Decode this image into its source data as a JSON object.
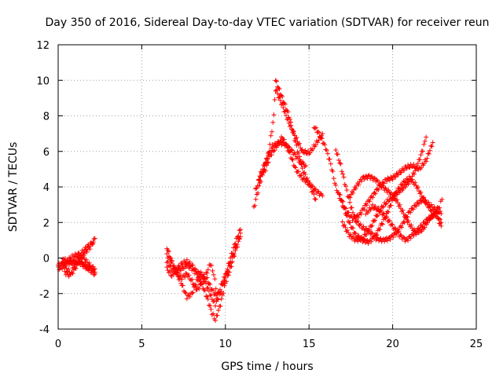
{
  "chart_data": {
    "type": "scatter",
    "title": "Day 350 of 2016, Sidereal Day-to-day VTEC variation (SDTVAR) for receiver reun",
    "xlabel": "GPS time / hours",
    "ylabel": "SDTVAR / TECUs",
    "xlim": [
      0,
      25
    ],
    "ylim": [
      -4,
      12
    ],
    "xticks": [
      "0",
      "5",
      "10",
      "15",
      "20",
      "25"
    ],
    "yticks": [
      "-4",
      "-2",
      "0",
      "2",
      "4",
      "6",
      "8",
      "10",
      "12"
    ],
    "grid": true,
    "marker": "+",
    "series": [
      {
        "name": "SDTVAR",
        "color": "#ff0000",
        "tracks": [
          [
            [
              0.0,
              -0.4
            ],
            [
              0.3,
              -0.3
            ],
            [
              0.6,
              -0.2
            ],
            [
              0.9,
              -0.3
            ],
            [
              1.2,
              -0.2
            ],
            [
              1.5,
              -0.4
            ],
            [
              1.8,
              -0.5
            ],
            [
              2.2,
              -0.6
            ]
          ],
          [
            [
              0.0,
              -0.6
            ],
            [
              0.3,
              -0.5
            ],
            [
              0.6,
              -0.1
            ],
            [
              0.9,
              0.1
            ],
            [
              1.2,
              0.2
            ],
            [
              1.5,
              0.0
            ],
            [
              1.8,
              -0.3
            ],
            [
              2.2,
              -0.8
            ]
          ],
          [
            [
              0.2,
              -0.2
            ],
            [
              0.5,
              -0.6
            ],
            [
              0.8,
              -0.9
            ],
            [
              1.0,
              -0.6
            ],
            [
              1.3,
              -0.1
            ],
            [
              1.6,
              0.3
            ],
            [
              1.9,
              0.6
            ],
            [
              2.2,
              1.1
            ]
          ],
          [
            [
              0.3,
              0.0
            ],
            [
              0.6,
              -0.3
            ],
            [
              0.9,
              -0.2
            ],
            [
              1.2,
              0.1
            ],
            [
              1.5,
              0.4
            ],
            [
              1.8,
              0.7
            ],
            [
              2.1,
              0.9
            ]
          ],
          [
            [
              0.4,
              -0.8
            ],
            [
              0.7,
              -1.0
            ],
            [
              1.0,
              -0.4
            ],
            [
              1.3,
              -0.2
            ],
            [
              1.6,
              -0.5
            ],
            [
              1.9,
              -0.7
            ],
            [
              2.2,
              -0.9
            ]
          ],
          [
            [
              6.5,
              0.6
            ],
            [
              6.8,
              -0.2
            ],
            [
              7.1,
              -0.9
            ],
            [
              7.4,
              -1.5
            ],
            [
              7.7,
              -2.2
            ],
            [
              8.0,
              -2.0
            ],
            [
              8.3,
              -1.3
            ],
            [
              8.6,
              -1.0
            ],
            [
              8.9,
              -1.6
            ],
            [
              9.2,
              -2.3
            ],
            [
              9.4,
              -2.6
            ],
            [
              9.7,
              -2.0
            ],
            [
              10.0,
              -1.0
            ],
            [
              10.3,
              0.0
            ],
            [
              10.6,
              0.9
            ],
            [
              10.9,
              1.6
            ]
          ],
          [
            [
              6.5,
              -0.2
            ],
            [
              6.8,
              -0.6
            ],
            [
              7.1,
              -0.7
            ],
            [
              7.4,
              -0.6
            ],
            [
              7.7,
              -0.4
            ],
            [
              8.0,
              -0.6
            ],
            [
              8.3,
              -0.9
            ],
            [
              8.6,
              -1.5
            ],
            [
              8.9,
              -2.2
            ],
            [
              9.2,
              -3.1
            ],
            [
              9.4,
              -3.5
            ],
            [
              9.7,
              -2.6
            ],
            [
              10.0,
              -1.4
            ],
            [
              10.3,
              -0.6
            ],
            [
              10.6,
              0.4
            ],
            [
              10.9,
              1.2
            ]
          ],
          [
            [
              6.5,
              -0.6
            ],
            [
              6.8,
              -1.0
            ],
            [
              7.1,
              -0.6
            ],
            [
              7.4,
              -0.3
            ],
            [
              7.7,
              -0.2
            ],
            [
              8.0,
              -0.4
            ],
            [
              8.3,
              -0.8
            ],
            [
              8.6,
              -0.9
            ],
            [
              8.9,
              -1.2
            ],
            [
              9.2,
              -1.8
            ],
            [
              9.5,
              -2.2
            ],
            [
              9.8,
              -1.4
            ],
            [
              10.1,
              -0.8
            ],
            [
              10.4,
              0.0
            ],
            [
              10.7,
              0.8
            ],
            [
              10.9,
              1.4
            ]
          ],
          [
            [
              6.5,
              0.2
            ],
            [
              6.8,
              -0.3
            ],
            [
              7.1,
              -0.9
            ],
            [
              7.4,
              -1.1
            ],
            [
              7.7,
              -0.9
            ],
            [
              8.0,
              -1.3
            ],
            [
              8.3,
              -1.8
            ],
            [
              8.6,
              -1.4
            ],
            [
              8.9,
              -0.8
            ],
            [
              9.1,
              -0.3
            ],
            [
              9.3,
              -0.9
            ],
            [
              9.5,
              -2.0
            ]
          ],
          [
            [
              11.7,
              2.8
            ],
            [
              12.0,
              4.0
            ],
            [
              12.3,
              5.0
            ],
            [
              12.6,
              6.0
            ],
            [
              12.9,
              8.0
            ],
            [
              13.0,
              10.0
            ],
            [
              13.4,
              9.0
            ],
            [
              13.8,
              8.0
            ],
            [
              14.2,
              6.5
            ],
            [
              14.6,
              5.0
            ],
            [
              15.0,
              4.2
            ],
            [
              15.4,
              3.3
            ]
          ],
          [
            [
              11.8,
              3.8
            ],
            [
              12.1,
              4.6
            ],
            [
              12.4,
              5.0
            ],
            [
              12.7,
              5.8
            ],
            [
              13.0,
              6.2
            ],
            [
              13.4,
              6.8
            ],
            [
              13.8,
              6.0
            ],
            [
              14.2,
              5.0
            ],
            [
              14.6,
              4.5
            ],
            [
              15.0,
              4.2
            ],
            [
              15.4,
              3.8
            ],
            [
              15.8,
              3.5
            ]
          ],
          [
            [
              12.0,
              4.5
            ],
            [
              12.4,
              5.4
            ],
            [
              12.8,
              6.3
            ],
            [
              13.2,
              6.5
            ],
            [
              13.6,
              6.4
            ],
            [
              14.0,
              6.0
            ],
            [
              14.4,
              5.5
            ],
            [
              14.8,
              5.2
            ]
          ],
          [
            [
              13.0,
              9.5
            ],
            [
              13.4,
              8.6
            ],
            [
              13.8,
              7.6
            ],
            [
              14.2,
              6.8
            ],
            [
              14.6,
              6.0
            ],
            [
              15.0,
              5.9
            ],
            [
              15.4,
              6.4
            ],
            [
              15.8,
              7.0
            ]
          ],
          [
            [
              15.3,
              7.4
            ],
            [
              15.6,
              7.0
            ],
            [
              16.0,
              6.2
            ],
            [
              16.3,
              5.3
            ],
            [
              16.6,
              4.0
            ],
            [
              17.0,
              3.0
            ],
            [
              17.4,
              2.0
            ],
            [
              17.8,
              1.3
            ],
            [
              18.2,
              1.0
            ],
            [
              18.6,
              0.9
            ],
            [
              19.0,
              1.3
            ],
            [
              19.4,
              2.0
            ],
            [
              19.8,
              2.8
            ],
            [
              20.2,
              3.7
            ],
            [
              20.6,
              4.2
            ],
            [
              21.0,
              4.5
            ],
            [
              21.4,
              4.1
            ],
            [
              21.8,
              3.4
            ],
            [
              22.2,
              2.8
            ],
            [
              22.6,
              2.4
            ],
            [
              22.9,
              1.8
            ]
          ],
          [
            [
              16.6,
              6.1
            ],
            [
              16.9,
              5.2
            ],
            [
              17.2,
              4.0
            ],
            [
              17.5,
              2.9
            ],
            [
              17.8,
              2.1
            ],
            [
              18.2,
              1.7
            ],
            [
              18.6,
              1.5
            ],
            [
              19.0,
              1.1
            ],
            [
              19.4,
              1.0
            ],
            [
              19.8,
              1.1
            ],
            [
              20.2,
              1.4
            ],
            [
              20.6,
              1.9
            ],
            [
              21.0,
              2.6
            ],
            [
              21.4,
              3.0
            ],
            [
              21.8,
              3.3
            ],
            [
              22.2,
              3.0
            ],
            [
              22.6,
              2.7
            ],
            [
              22.9,
              2.5
            ]
          ],
          [
            [
              16.8,
              3.6
            ],
            [
              17.2,
              2.7
            ],
            [
              17.6,
              2.2
            ],
            [
              18.0,
              2.4
            ],
            [
              18.4,
              3.0
            ],
            [
              18.8,
              3.5
            ],
            [
              19.2,
              4.0
            ],
            [
              19.6,
              4.4
            ],
            [
              20.0,
              4.5
            ],
            [
              20.4,
              4.8
            ],
            [
              20.8,
              5.1
            ],
            [
              21.2,
              5.2
            ],
            [
              21.6,
              5.0
            ],
            [
              22.0,
              5.5
            ],
            [
              22.4,
              6.5
            ]
          ],
          [
            [
              17.0,
              2.0
            ],
            [
              17.4,
              1.3
            ],
            [
              17.8,
              1.0
            ],
            [
              18.2,
              1.1
            ],
            [
              18.6,
              1.6
            ],
            [
              19.0,
              2.3
            ],
            [
              19.4,
              2.9
            ],
            [
              19.8,
              3.3
            ],
            [
              20.2,
              3.6
            ],
            [
              20.6,
              3.9
            ],
            [
              21.0,
              4.3
            ],
            [
              21.4,
              5.0
            ],
            [
              21.8,
              6.1
            ],
            [
              22.0,
              6.8
            ]
          ],
          [
            [
              18.4,
              2.5
            ],
            [
              18.8,
              2.9
            ],
            [
              19.2,
              2.7
            ],
            [
              19.6,
              2.3
            ],
            [
              20.0,
              1.8
            ],
            [
              20.4,
              1.3
            ],
            [
              20.8,
              1.0
            ],
            [
              21.2,
              1.3
            ],
            [
              21.6,
              1.7
            ],
            [
              22.0,
              2.1
            ],
            [
              22.4,
              2.4
            ],
            [
              22.8,
              2.9
            ],
            [
              22.95,
              3.3
            ]
          ],
          [
            [
              17.4,
              3.4
            ],
            [
              17.8,
              4.0
            ],
            [
              18.2,
              4.5
            ],
            [
              18.6,
              4.6
            ],
            [
              19.0,
              4.4
            ],
            [
              19.4,
              4.0
            ],
            [
              19.8,
              3.7
            ],
            [
              20.2,
              3.3
            ],
            [
              20.6,
              2.6
            ],
            [
              21.0,
              1.9
            ],
            [
              21.4,
              1.4
            ],
            [
              21.8,
              1.6
            ],
            [
              22.2,
              2.2
            ],
            [
              22.6,
              2.5
            ],
            [
              22.9,
              2.0
            ]
          ]
        ]
      }
    ]
  }
}
